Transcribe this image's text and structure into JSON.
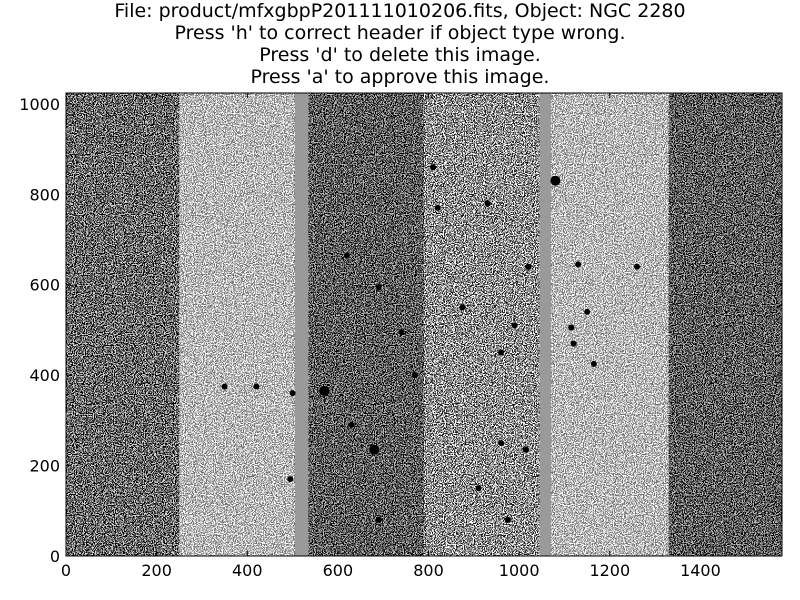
{
  "title_lines": [
    "File: product/mfxgbpP201111010206.fits, Object: NGC 2280",
    "Press 'h' to correct header if object type wrong.",
    "Press 'd' to delete this image.",
    "Press 'a' to approve this image."
  ],
  "chart_data": {
    "type": "heatmap",
    "colormap": "grayscale",
    "xlim": [
      0,
      1580
    ],
    "ylim": [
      0,
      1024
    ],
    "x_ticks": [
      0,
      200,
      400,
      600,
      800,
      1000,
      1200,
      1400
    ],
    "y_ticks": [
      0,
      200,
      400,
      600,
      800,
      1000
    ],
    "x_tick_labels": [
      "0",
      "200",
      "400",
      "600",
      "800",
      "1000",
      "1200",
      "1400"
    ],
    "y_tick_labels": [
      "0",
      "200",
      "400",
      "600",
      "800",
      "1000"
    ],
    "grid": false,
    "chip_gaps_x": [
      [
        505,
        535
      ],
      [
        1045,
        1070
      ]
    ],
    "chip_regions": [
      {
        "x": [
          0,
          250
        ],
        "tone": "dark-vignetted"
      },
      {
        "x": [
          250,
          505
        ],
        "tone": "light"
      },
      {
        "x": [
          535,
          790
        ],
        "tone": "dark"
      },
      {
        "x": [
          790,
          1045
        ],
        "tone": "medium"
      },
      {
        "x": [
          1070,
          1330
        ],
        "tone": "light"
      },
      {
        "x": [
          1330,
          1580
        ],
        "tone": "dark"
      }
    ],
    "sources": [
      {
        "x": 1080,
        "y": 830
      },
      {
        "x": 570,
        "y": 365
      },
      {
        "x": 680,
        "y": 235
      },
      {
        "x": 875,
        "y": 550
      },
      {
        "x": 740,
        "y": 495
      },
      {
        "x": 1115,
        "y": 505
      },
      {
        "x": 1120,
        "y": 470
      },
      {
        "x": 690,
        "y": 595
      },
      {
        "x": 620,
        "y": 665
      },
      {
        "x": 810,
        "y": 860
      },
      {
        "x": 1130,
        "y": 645
      },
      {
        "x": 1260,
        "y": 640
      },
      {
        "x": 1015,
        "y": 235
      },
      {
        "x": 975,
        "y": 80
      },
      {
        "x": 990,
        "y": 510
      },
      {
        "x": 910,
        "y": 150
      },
      {
        "x": 420,
        "y": 375
      },
      {
        "x": 500,
        "y": 360
      },
      {
        "x": 820,
        "y": 770
      },
      {
        "x": 930,
        "y": 780
      },
      {
        "x": 960,
        "y": 450
      },
      {
        "x": 1150,
        "y": 540
      },
      {
        "x": 1165,
        "y": 425
      },
      {
        "x": 495,
        "y": 170
      },
      {
        "x": 690,
        "y": 80
      },
      {
        "x": 770,
        "y": 400
      },
      {
        "x": 630,
        "y": 290
      },
      {
        "x": 960,
        "y": 250
      },
      {
        "x": 1020,
        "y": 640
      },
      {
        "x": 350,
        "y": 375
      }
    ]
  }
}
